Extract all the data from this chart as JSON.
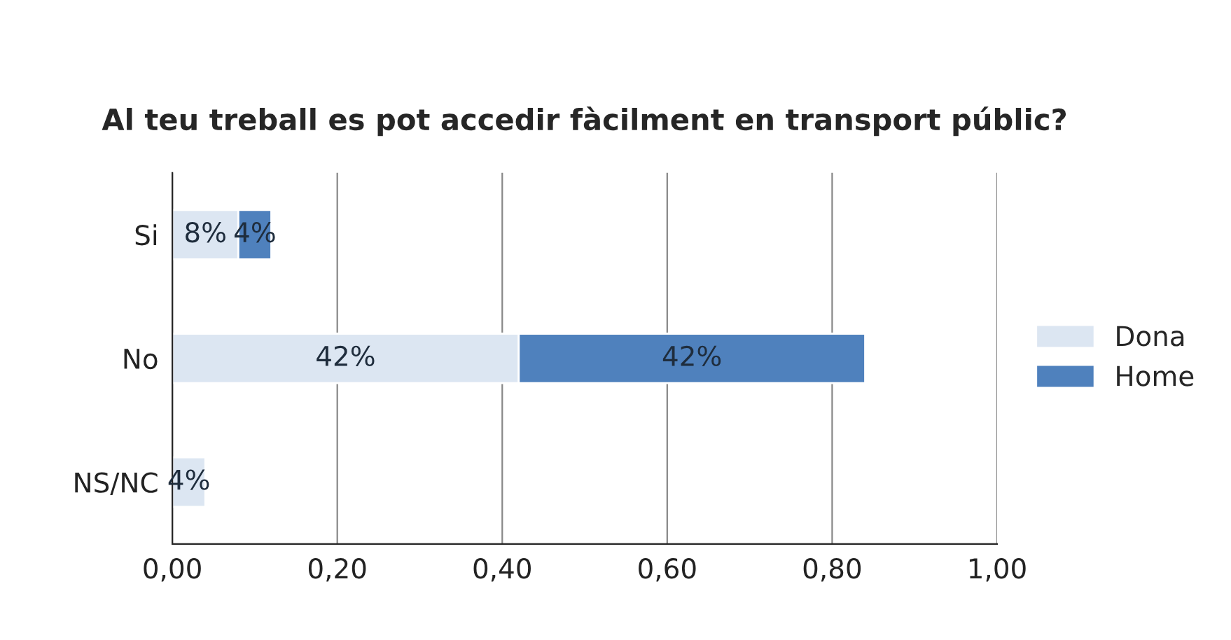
{
  "chart_data": {
    "type": "bar",
    "orientation": "horizontal",
    "stacked": true,
    "title": "Al teu treball es pot accedir fàcilment en transport públic?",
    "categories": [
      "Si",
      "No",
      "NS/NC"
    ],
    "series": [
      {
        "name": "Dona",
        "color": "#dce6f2",
        "values": [
          0.08,
          0.42,
          0.04
        ],
        "value_labels": [
          "8%",
          "42%",
          "4%"
        ]
      },
      {
        "name": "Home",
        "color": "#4f81bd",
        "values": [
          0.04,
          0.42,
          null
        ],
        "value_labels": [
          "4%",
          "42%",
          null
        ]
      }
    ],
    "xlim": [
      0,
      1
    ],
    "xticks": [
      {
        "value": 0,
        "label": "0,00"
      },
      {
        "value": 0.2,
        "label": "0,20"
      },
      {
        "value": 0.4,
        "label": "0,40"
      },
      {
        "value": 0.6,
        "label": "0,60"
      },
      {
        "value": 0.8,
        "label": "0,80"
      },
      {
        "value": 1,
        "label": "1,00"
      }
    ],
    "grid": "x",
    "legend": "right"
  }
}
